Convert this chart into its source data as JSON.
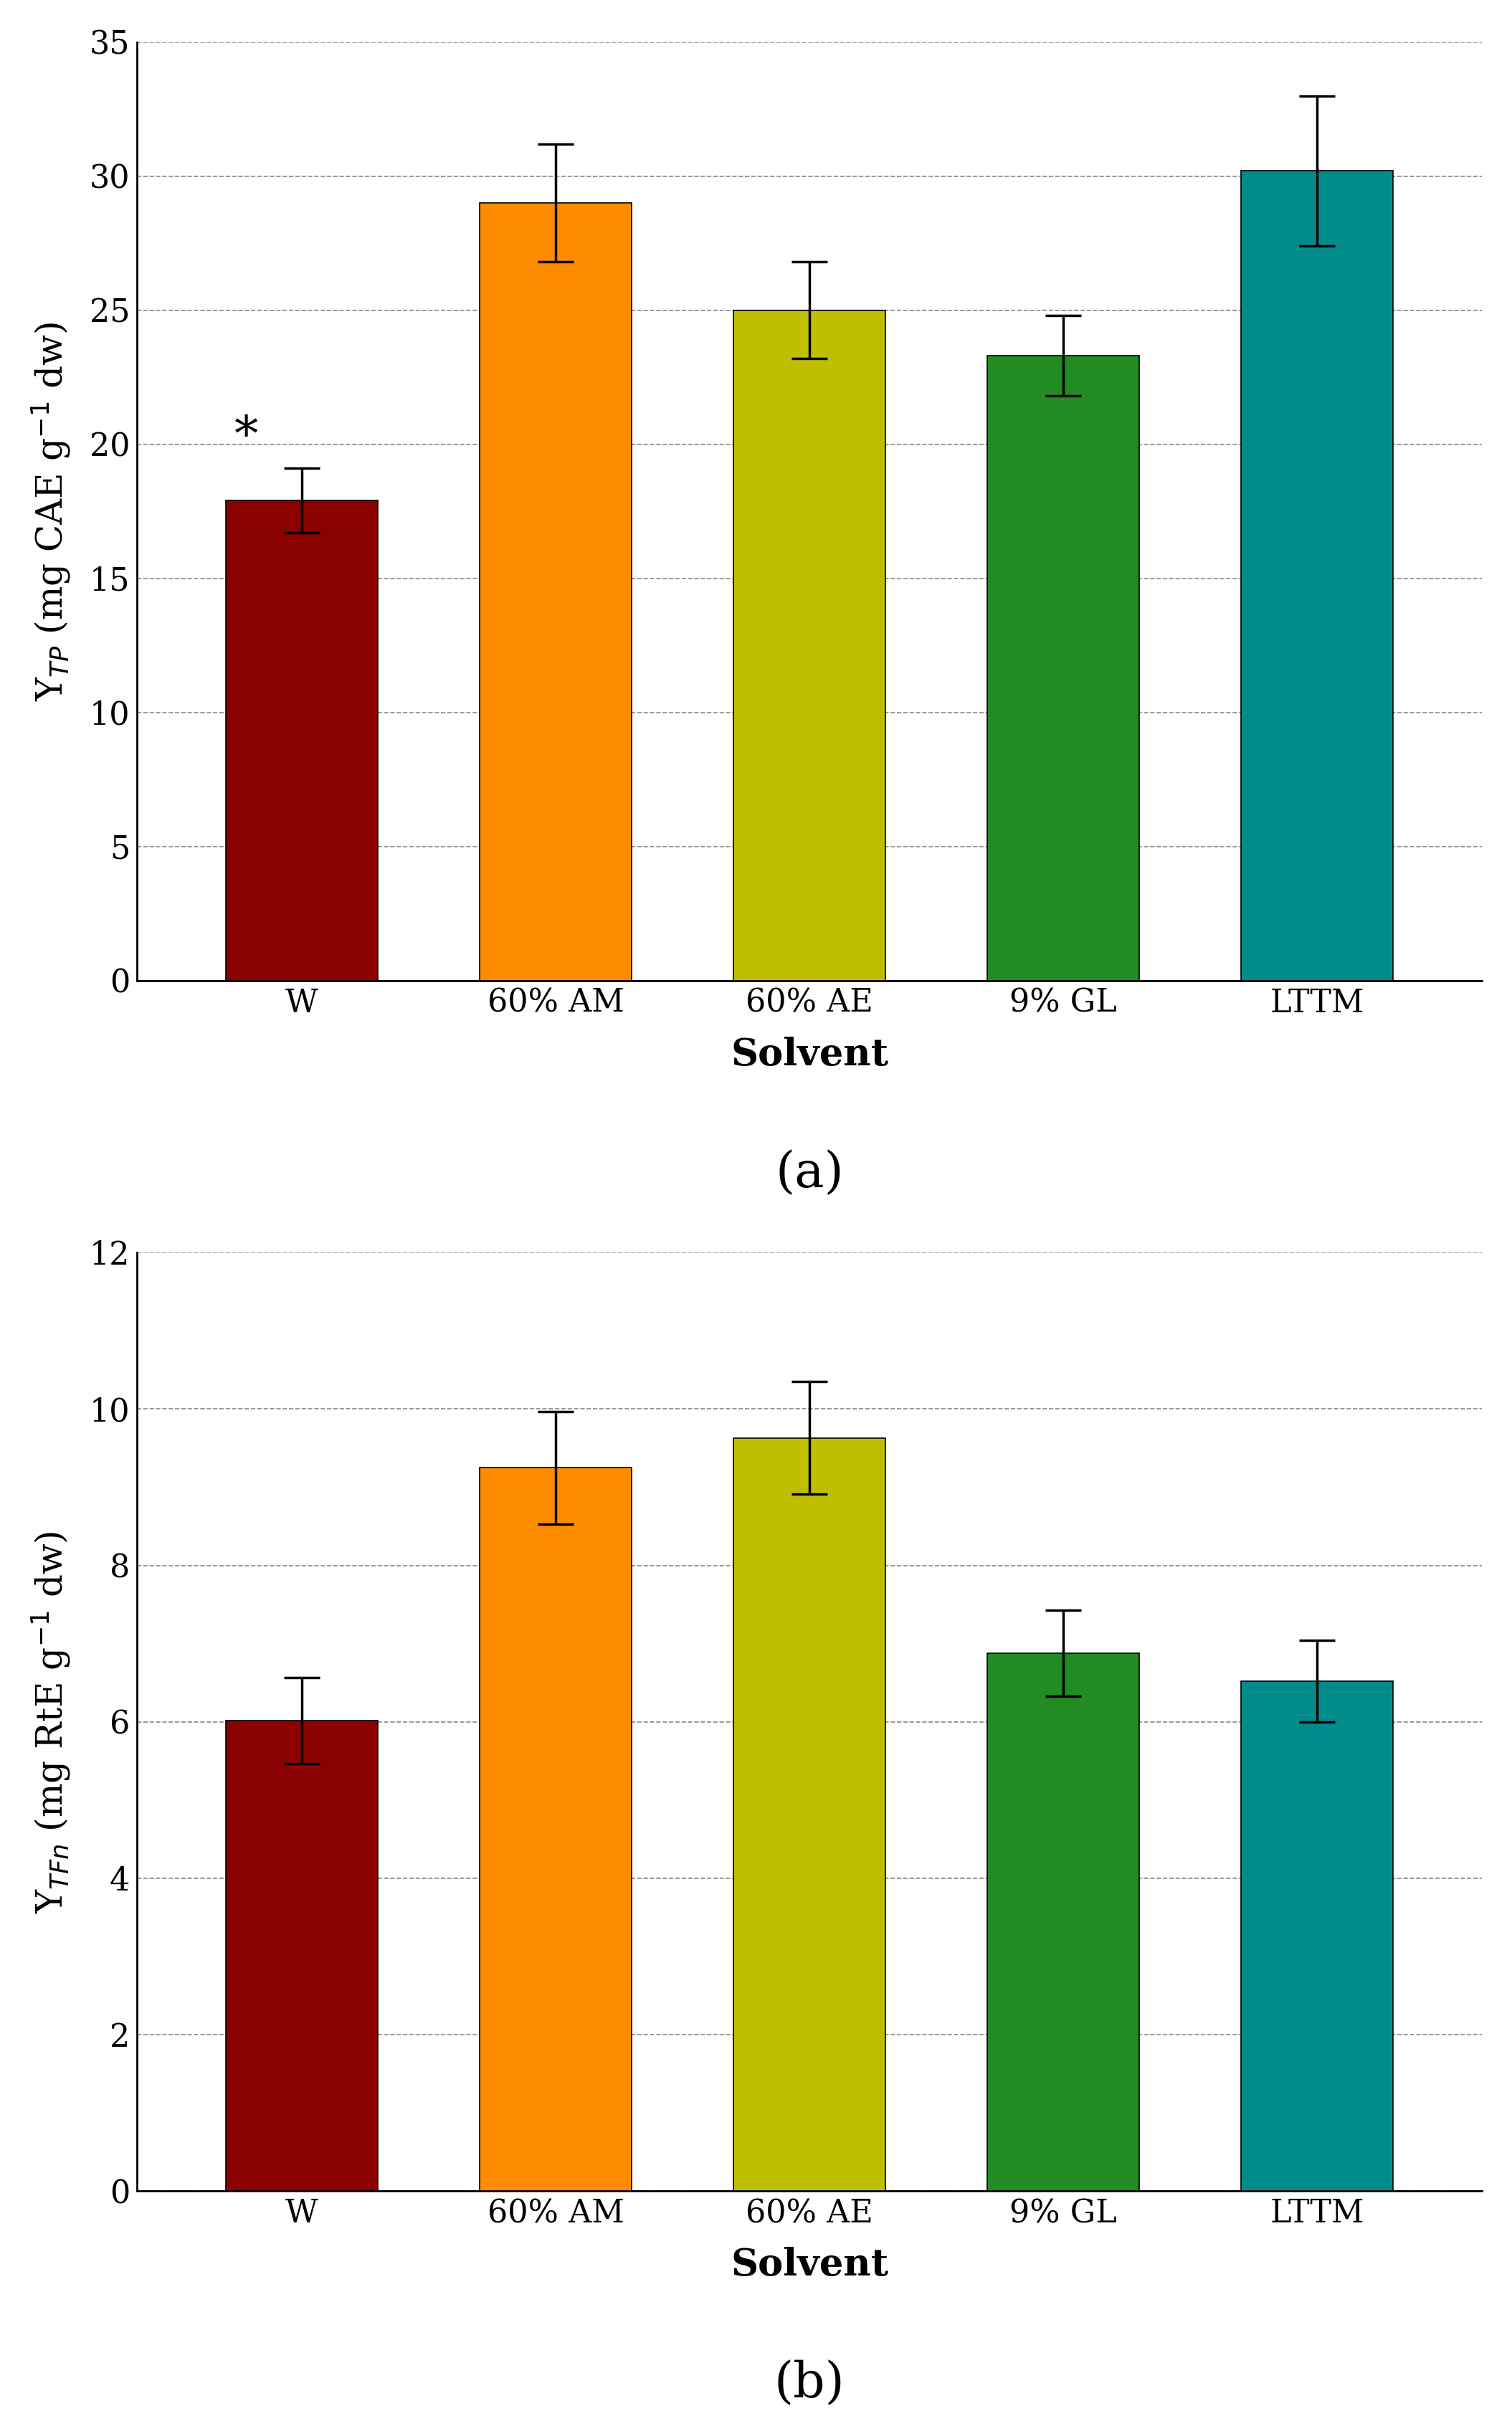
{
  "categories": [
    "W",
    "60% AM",
    "60% AE",
    "9% GL",
    "LTTM"
  ],
  "bar_colors": [
    "#8B0000",
    "#FF8C00",
    "#BFBF00",
    "#228B22",
    "#008B8B"
  ],
  "chart_a": {
    "values": [
      17.9,
      29.0,
      25.0,
      23.3,
      30.2
    ],
    "errors": [
      1.2,
      2.2,
      1.8,
      1.5,
      2.8
    ],
    "ylabel": "Y$_{TP}$ (mg CAE g$^{-1}$ dw)",
    "ylim": [
      0,
      35
    ],
    "yticks": [
      0,
      5,
      10,
      15,
      20,
      25,
      30,
      35
    ],
    "asterisk_bar": 0,
    "label": "(a)"
  },
  "chart_b": {
    "values": [
      6.02,
      9.25,
      9.63,
      6.88,
      6.52
    ],
    "errors": [
      0.55,
      0.72,
      0.72,
      0.55,
      0.52
    ],
    "ylabel": "Y$_{TFn}$ (mg RtE g$^{-1}$ dw)",
    "ylim": [
      0,
      12
    ],
    "yticks": [
      0,
      2,
      4,
      6,
      8,
      10,
      12
    ],
    "label": "(b)"
  },
  "xlabel": "Solvent",
  "bar_width": 0.6,
  "figure_bg": "#FFFFFF",
  "axis_bg": "#FFFFFF",
  "grid_color": "#888888",
  "error_capsize": 18,
  "error_linewidth": 2.5,
  "tick_fontsize": 32,
  "label_fontsize": 36,
  "xlabel_fontsize": 38,
  "panel_label_fontsize": 50,
  "asterisk_fontsize": 48,
  "font_family": "DejaVu Serif"
}
